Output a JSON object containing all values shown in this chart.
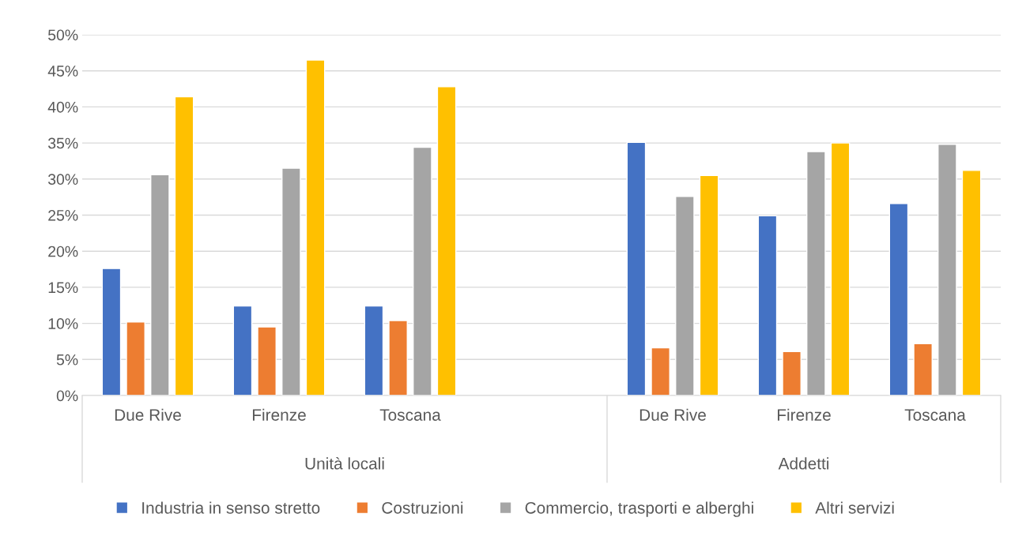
{
  "chart_data": {
    "type": "bar",
    "categories": [
      "Due Rive",
      "Firenze",
      "Toscana",
      null,
      "Due Rive",
      "Firenze",
      "Toscana"
    ],
    "series": [
      {
        "name": "Industria in senso stretto",
        "color": "#4472c4",
        "values": [
          17.6,
          12.4,
          12.4,
          null,
          35.1,
          24.9,
          26.6
        ]
      },
      {
        "name": "Costruzioni",
        "color": "#ed7d31",
        "values": [
          10.2,
          9.5,
          10.4,
          null,
          6.6,
          6.1,
          7.2
        ]
      },
      {
        "name": "Commercio, trasporti e alberghi",
        "color": "#a5a5a5",
        "values": [
          30.6,
          31.5,
          34.4,
          null,
          27.6,
          33.8,
          34.8
        ]
      },
      {
        "name": "Altri servizi",
        "color": "#ffc000",
        "values": [
          41.4,
          46.5,
          42.8,
          null,
          30.5,
          35.0,
          31.2
        ]
      }
    ],
    "annotations": [
      "Unità locali",
      "Addetti"
    ],
    "ylim": [
      0,
      50
    ],
    "yticks": [
      {
        "value": 0,
        "label": "0%"
      },
      {
        "value": 5,
        "label": "5%"
      },
      {
        "value": 10,
        "label": "10%"
      },
      {
        "value": 15,
        "label": "15%"
      },
      {
        "value": 20,
        "label": "20%"
      },
      {
        "value": 25,
        "label": "25%"
      },
      {
        "value": 30,
        "label": "30%"
      },
      {
        "value": 35,
        "label": "35%"
      },
      {
        "value": 40,
        "label": "40%"
      },
      {
        "value": 45,
        "label": "45%"
      },
      {
        "value": 50,
        "label": "50%"
      }
    ],
    "grid": "y",
    "legend": "bottom"
  }
}
